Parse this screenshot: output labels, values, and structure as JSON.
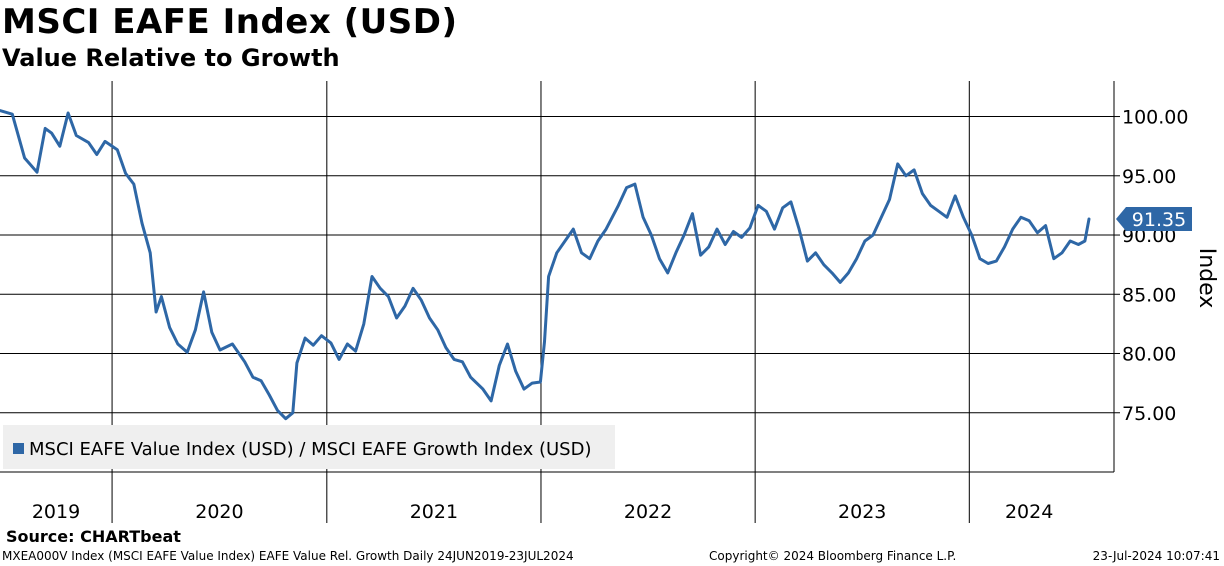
{
  "header": {
    "title": "MSCI EAFE Index (USD)",
    "subtitle": "Value Relative to Growth"
  },
  "footer": {
    "source": "Source: CHARTbeat",
    "ticker_info": "MXEA000V Index (MSCI EAFE Value Index) EAFE Value Rel. Growth  Daily 24JUN2019-23JUL2024",
    "copyright": "Copyright© 2024 Bloomberg Finance L.P.",
    "timestamp": "23-Jul-2024 10:07:41"
  },
  "colors": {
    "series": "#2e67a6",
    "grid": "#000000",
    "legend_bg": "#efefef"
  },
  "chart_data": {
    "type": "line",
    "xlabel": "",
    "ylabel": "Index",
    "x_range": [
      "2019-06-24",
      "2024-07-23"
    ],
    "ylim": [
      70,
      103
    ],
    "y_ticks": [
      75,
      80,
      85,
      90,
      95,
      100
    ],
    "y_tick_labels": [
      "75.00",
      "80.00",
      "85.00",
      "90.00",
      "95.00",
      "100.00"
    ],
    "x_tick_labels": [
      "2019",
      "2020",
      "2021",
      "2022",
      "2023",
      "2024"
    ],
    "year_boundaries": [
      "2020-01-01",
      "2021-01-01",
      "2022-01-01",
      "2023-01-01",
      "2024-01-01"
    ],
    "grid": true,
    "legend_position": "bottom-left",
    "last_value": 91.35,
    "last_value_label": "91.35",
    "series": [
      {
        "name": "MSCI EAFE Value Index (USD) / MSCI EAFE Growth Index (USD)",
        "points": [
          [
            "2019-06-24",
            100.5
          ],
          [
            "2019-07-15",
            100.2
          ],
          [
            "2019-08-05",
            96.5
          ],
          [
            "2019-08-26",
            95.3
          ],
          [
            "2019-09-09",
            99.0
          ],
          [
            "2019-09-20",
            98.6
          ],
          [
            "2019-10-04",
            97.5
          ],
          [
            "2019-10-18",
            100.3
          ],
          [
            "2019-11-01",
            98.4
          ],
          [
            "2019-11-22",
            97.8
          ],
          [
            "2019-12-06",
            96.8
          ],
          [
            "2019-12-20",
            97.9
          ],
          [
            "2020-01-10",
            97.2
          ],
          [
            "2020-01-24",
            95.2
          ],
          [
            "2020-02-07",
            94.3
          ],
          [
            "2020-02-21",
            91.0
          ],
          [
            "2020-03-06",
            88.5
          ],
          [
            "2020-03-16",
            83.5
          ],
          [
            "2020-03-25",
            84.8
          ],
          [
            "2020-04-08",
            82.2
          ],
          [
            "2020-04-22",
            80.8
          ],
          [
            "2020-05-08",
            80.1
          ],
          [
            "2020-05-22",
            82.0
          ],
          [
            "2020-06-05",
            85.2
          ],
          [
            "2020-06-19",
            81.8
          ],
          [
            "2020-07-03",
            80.3
          ],
          [
            "2020-07-24",
            80.8
          ],
          [
            "2020-08-14",
            79.3
          ],
          [
            "2020-08-28",
            78.0
          ],
          [
            "2020-09-11",
            77.7
          ],
          [
            "2020-09-25",
            76.5
          ],
          [
            "2020-10-09",
            75.2
          ],
          [
            "2020-10-23",
            74.5
          ],
          [
            "2020-11-04",
            75.0
          ],
          [
            "2020-11-11",
            79.2
          ],
          [
            "2020-11-25",
            81.3
          ],
          [
            "2020-12-09",
            80.7
          ],
          [
            "2020-12-23",
            81.5
          ],
          [
            "2021-01-08",
            80.9
          ],
          [
            "2021-01-22",
            79.5
          ],
          [
            "2021-02-05",
            80.8
          ],
          [
            "2021-02-19",
            80.2
          ],
          [
            "2021-03-05",
            82.5
          ],
          [
            "2021-03-19",
            86.5
          ],
          [
            "2021-04-02",
            85.5
          ],
          [
            "2021-04-16",
            84.8
          ],
          [
            "2021-04-30",
            83.0
          ],
          [
            "2021-05-14",
            84.0
          ],
          [
            "2021-05-28",
            85.5
          ],
          [
            "2021-06-11",
            84.5
          ],
          [
            "2021-06-25",
            83.0
          ],
          [
            "2021-07-09",
            82.0
          ],
          [
            "2021-07-23",
            80.5
          ],
          [
            "2021-08-06",
            79.5
          ],
          [
            "2021-08-20",
            79.3
          ],
          [
            "2021-09-03",
            78.0
          ],
          [
            "2021-09-24",
            77.0
          ],
          [
            "2021-10-08",
            76.0
          ],
          [
            "2021-10-22",
            79.0
          ],
          [
            "2021-11-05",
            80.8
          ],
          [
            "2021-11-19",
            78.5
          ],
          [
            "2021-12-03",
            77.0
          ],
          [
            "2021-12-17",
            77.5
          ],
          [
            "2021-12-31",
            77.6
          ],
          [
            "2022-01-07",
            81.0
          ],
          [
            "2022-01-14",
            86.5
          ],
          [
            "2022-01-28",
            88.5
          ],
          [
            "2022-02-11",
            89.5
          ],
          [
            "2022-02-25",
            90.5
          ],
          [
            "2022-03-11",
            88.5
          ],
          [
            "2022-03-25",
            88.0
          ],
          [
            "2022-04-08",
            89.5
          ],
          [
            "2022-04-22",
            90.5
          ],
          [
            "2022-05-13",
            92.5
          ],
          [
            "2022-05-27",
            94.0
          ],
          [
            "2022-06-10",
            94.3
          ],
          [
            "2022-06-24",
            91.5
          ],
          [
            "2022-07-08",
            90.0
          ],
          [
            "2022-07-22",
            88.0
          ],
          [
            "2022-08-05",
            86.8
          ],
          [
            "2022-08-19",
            88.5
          ],
          [
            "2022-09-02",
            90.0
          ],
          [
            "2022-09-16",
            91.8
          ],
          [
            "2022-09-30",
            88.3
          ],
          [
            "2022-10-14",
            89.0
          ],
          [
            "2022-10-28",
            90.5
          ],
          [
            "2022-11-11",
            89.2
          ],
          [
            "2022-11-25",
            90.3
          ],
          [
            "2022-12-09",
            89.8
          ],
          [
            "2022-12-23",
            90.6
          ],
          [
            "2023-01-06",
            92.5
          ],
          [
            "2023-01-20",
            92.0
          ],
          [
            "2023-02-03",
            90.5
          ],
          [
            "2023-02-17",
            92.3
          ],
          [
            "2023-03-03",
            92.8
          ],
          [
            "2023-03-17",
            90.5
          ],
          [
            "2023-03-31",
            87.8
          ],
          [
            "2023-04-14",
            88.5
          ],
          [
            "2023-04-28",
            87.5
          ],
          [
            "2023-05-12",
            86.8
          ],
          [
            "2023-05-26",
            86.0
          ],
          [
            "2023-06-09",
            86.8
          ],
          [
            "2023-06-23",
            88.0
          ],
          [
            "2023-07-07",
            89.5
          ],
          [
            "2023-07-21",
            90.0
          ],
          [
            "2023-08-04",
            91.5
          ],
          [
            "2023-08-18",
            93.0
          ],
          [
            "2023-09-01",
            96.0
          ],
          [
            "2023-09-15",
            95.0
          ],
          [
            "2023-09-29",
            95.5
          ],
          [
            "2023-10-13",
            93.5
          ],
          [
            "2023-10-27",
            92.5
          ],
          [
            "2023-11-10",
            92.0
          ],
          [
            "2023-11-24",
            91.5
          ],
          [
            "2023-12-08",
            93.3
          ],
          [
            "2023-12-22",
            91.5
          ],
          [
            "2024-01-05",
            90.0
          ],
          [
            "2024-01-19",
            88.0
          ],
          [
            "2024-02-02",
            87.6
          ],
          [
            "2024-02-16",
            87.8
          ],
          [
            "2024-03-01",
            89.0
          ],
          [
            "2024-03-15",
            90.5
          ],
          [
            "2024-03-29",
            91.5
          ],
          [
            "2024-04-12",
            91.2
          ],
          [
            "2024-04-26",
            90.2
          ],
          [
            "2024-05-10",
            90.8
          ],
          [
            "2024-05-24",
            88.0
          ],
          [
            "2024-06-07",
            88.5
          ],
          [
            "2024-06-21",
            89.5
          ],
          [
            "2024-07-05",
            89.2
          ],
          [
            "2024-07-16",
            89.5
          ],
          [
            "2024-07-23",
            91.35
          ]
        ]
      }
    ]
  }
}
